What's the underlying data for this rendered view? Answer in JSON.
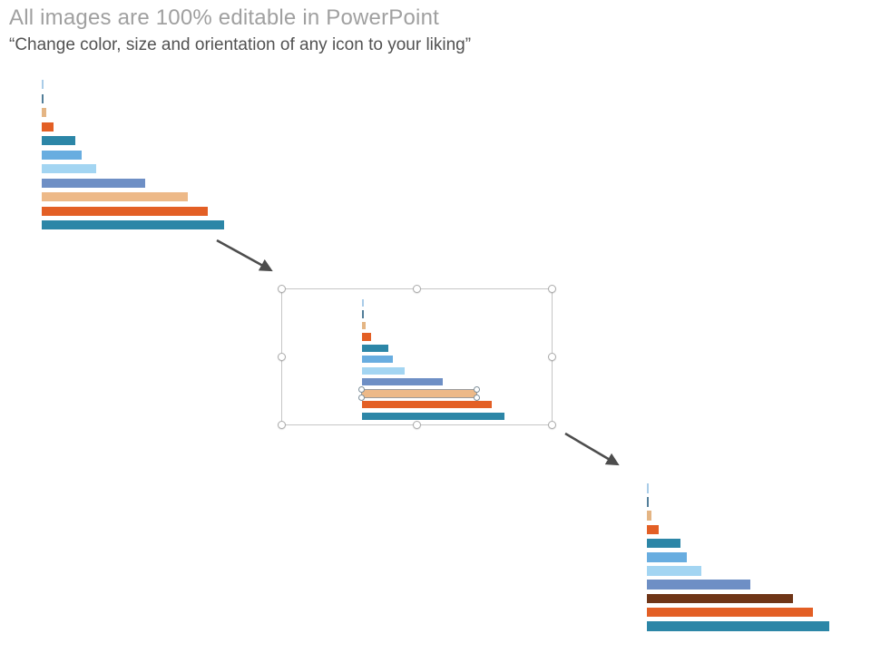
{
  "header": {
    "title": "All images are 100% editable in PowerPoint",
    "subtitle": "“Change color, size and orientation of any icon to your liking”"
  },
  "colors": {
    "title_text": "#a0a0a0",
    "subtitle_text": "#525252",
    "arrow": "#4d4d4d",
    "selection_outline": "#c6c6c6",
    "recolor_brown": "#6F3517"
  },
  "chart_data": {
    "type": "bar",
    "orientation": "horizontal",
    "title": "",
    "xlabel": "",
    "ylabel": "",
    "note": "decorative funnel-style bar chart, no axes, gridlines or labels",
    "bar_names": [
      "tick-light-blue",
      "tick-slate",
      "tan-tiny",
      "orange-small",
      "teal-small",
      "blue-medium",
      "pale-blue-medium",
      "steel-blue-large",
      "tan-large",
      "orange-large",
      "teal-large"
    ],
    "values": [
      2,
      2,
      5,
      13,
      37,
      44,
      60,
      114,
      161,
      183,
      201
    ],
    "colors": [
      "#A9CCE8",
      "#527E99",
      "#E4B584",
      "#E35F25",
      "#2C86A7",
      "#68ADE0",
      "#A3D5F2",
      "#6E8FC5",
      "#EDB988",
      "#E35F25",
      "#2C86A7"
    ],
    "variants": [
      {
        "name": "original-top-left",
        "selected_bar_index": null,
        "color_overrides": {}
      },
      {
        "name": "selected-middle-copy",
        "selected_bar_index": 8,
        "color_overrides": {}
      },
      {
        "name": "recolored-bottom-right-copy",
        "selected_bar_index": null,
        "color_overrides": {
          "8": "#6F3517"
        }
      }
    ]
  },
  "graphics": {
    "arrow_1": "arrow from original chart to selected copy",
    "arrow_2": "arrow from selected copy to recolored copy"
  }
}
